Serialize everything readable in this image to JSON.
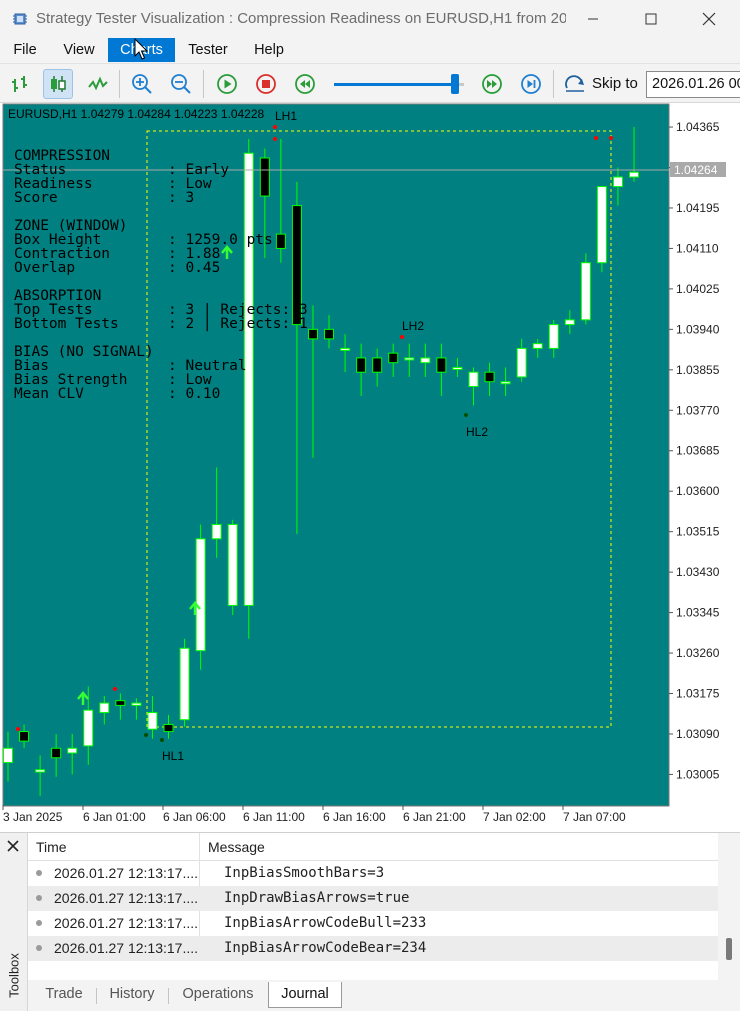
{
  "window": {
    "title": "Strategy Tester Visualization : Compression Readiness on EURUSD,H1 from 20...",
    "minimize_icon": "minimize-icon",
    "maximize_icon": "maximize-icon",
    "close_icon": "close-icon"
  },
  "menu": {
    "items": [
      "File",
      "View",
      "Charts",
      "Tester",
      "Help"
    ],
    "active": "Charts"
  },
  "toolbar": {
    "skip_label": "Skip to",
    "skip_value": "2026.01.26 00",
    "speed_fraction": 0.93,
    "icons": [
      "bar-chart-icon",
      "candlestick-icon",
      "line-chart-icon",
      "zoom-in-icon",
      "zoom-out-icon",
      "play-icon",
      "stop-icon",
      "rewind-icon",
      "fast-forward-icon",
      "step-end-icon",
      "skip-to-icon"
    ]
  },
  "chart": {
    "symbol_line": "EURUSD,H1  1.04279 1.04284 1.04223 1.04228",
    "current_price": "1.04264",
    "background": "#008080",
    "bull_color": "#ffffff",
    "bear_color": "#000000",
    "wick_color": "#00ff00",
    "box_color": "#ffff00",
    "info_panel": {
      "compression_header": "COMPRESSION",
      "status_label": "Status",
      "status_value": ": Early",
      "readiness_label": "Readiness",
      "readiness_value": ": Low",
      "score_label": "Score",
      "score_value": ": 3",
      "zone_header": "ZONE (WINDOW)",
      "box_height_label": "Box Height",
      "box_height_value": ": 1259.0 pts",
      "contraction_label": "Contraction",
      "contraction_value": ": 1.88",
      "overlap_label": "Overlap",
      "overlap_value": ": 0.45",
      "absorption_header": "ABSORPTION",
      "top_tests_label": "Top Tests",
      "top_tests_value": ": 3 | Rejects: 3",
      "bottom_tests_label": "Bottom Tests",
      "bottom_tests_value": ": 2 | Rejects: 1",
      "bias_header": "BIAS (NO SIGNAL)",
      "bias_label": "Bias",
      "bias_value": ": Neutral",
      "bias_strength_label": "Bias Strength",
      "bias_strength_value": ": Low",
      "mean_clv_label": "Mean CLV",
      "mean_clv_value": ": 0.10"
    },
    "swing_labels": [
      "LH1",
      "LH2",
      "HL1",
      "HL2"
    ]
  },
  "chart_data": {
    "type": "candlestick",
    "title": "EURUSD,H1",
    "price_axis_ticks": [
      "1.04365",
      "1.04280",
      "1.04195",
      "1.04110",
      "1.04025",
      "1.03940",
      "1.03855",
      "1.03770",
      "1.03685",
      "1.03600",
      "1.03515",
      "1.03430",
      "1.03345",
      "1.03260",
      "1.03175",
      "1.03090",
      "1.03005"
    ],
    "time_axis_ticks": [
      "3 Jan 2025",
      "6 Jan 01:00",
      "6 Jan 06:00",
      "6 Jan 11:00",
      "6 Jan 16:00",
      "6 Jan 21:00",
      "7 Jan 02:00",
      "7 Jan 07:00"
    ],
    "ylim": [
      1.02945,
      1.04405
    ],
    "candles": [
      {
        "o": 1.0303,
        "h": 1.03095,
        "l": 1.0299,
        "c": 1.0306
      },
      {
        "o": 1.03095,
        "h": 1.0311,
        "l": 1.0306,
        "c": 1.03075
      },
      {
        "o": 1.0301,
        "h": 1.03045,
        "l": 1.0296,
        "c": 1.03015
      },
      {
        "o": 1.0306,
        "h": 1.0309,
        "l": 1.03,
        "c": 1.0304
      },
      {
        "o": 1.0305,
        "h": 1.0309,
        "l": 1.03005,
        "c": 1.0306
      },
      {
        "o": 1.03065,
        "h": 1.0319,
        "l": 1.03025,
        "c": 1.0314
      },
      {
        "o": 1.03135,
        "h": 1.0317,
        "l": 1.0311,
        "c": 1.03155
      },
      {
        "o": 1.0316,
        "h": 1.03175,
        "l": 1.0312,
        "c": 1.0315
      },
      {
        "o": 1.0315,
        "h": 1.03165,
        "l": 1.0312,
        "c": 1.03155
      },
      {
        "o": 1.031,
        "h": 1.0317,
        "l": 1.0308,
        "c": 1.03135
      },
      {
        "o": 1.0311,
        "h": 1.0313,
        "l": 1.0308,
        "c": 1.03095
      },
      {
        "o": 1.0312,
        "h": 1.0329,
        "l": 1.03105,
        "c": 1.0327
      },
      {
        "o": 1.03265,
        "h": 1.0353,
        "l": 1.03225,
        "c": 1.035
      },
      {
        "o": 1.035,
        "h": 1.0365,
        "l": 1.0346,
        "c": 1.0353
      },
      {
        "o": 1.0336,
        "h": 1.0354,
        "l": 1.0334,
        "c": 1.0353
      },
      {
        "o": 1.0336,
        "h": 1.0434,
        "l": 1.0329,
        "c": 1.0431
      },
      {
        "o": 1.043,
        "h": 1.0432,
        "l": 1.0409,
        "c": 1.0422
      },
      {
        "o": 1.0414,
        "h": 1.0434,
        "l": 1.0408,
        "c": 1.0411
      },
      {
        "o": 1.042,
        "h": 1.0425,
        "l": 1.0351,
        "c": 1.0395
      },
      {
        "o": 1.0394,
        "h": 1.0399,
        "l": 1.0367,
        "c": 1.0392
      },
      {
        "o": 1.0394,
        "h": 1.0397,
        "l": 1.039,
        "c": 1.0392
      },
      {
        "o": 1.039,
        "h": 1.0393,
        "l": 1.0385,
        "c": 1.039
      },
      {
        "o": 1.0388,
        "h": 1.0391,
        "l": 1.038,
        "c": 1.0385
      },
      {
        "o": 1.0388,
        "h": 1.039,
        "l": 1.0382,
        "c": 1.0385
      },
      {
        "o": 1.0389,
        "h": 1.0391,
        "l": 1.0384,
        "c": 1.0387
      },
      {
        "o": 1.0388,
        "h": 1.0391,
        "l": 1.0384,
        "c": 1.0388
      },
      {
        "o": 1.0387,
        "h": 1.0391,
        "l": 1.0384,
        "c": 1.0388
      },
      {
        "o": 1.0388,
        "h": 1.0391,
        "l": 1.038,
        "c": 1.0385
      },
      {
        "o": 1.0386,
        "h": 1.0388,
        "l": 1.0384,
        "c": 1.0386
      },
      {
        "o": 1.0382,
        "h": 1.0386,
        "l": 1.0378,
        "c": 1.0385
      },
      {
        "o": 1.0385,
        "h": 1.0387,
        "l": 1.038,
        "c": 1.0383
      },
      {
        "o": 1.0383,
        "h": 1.0386,
        "l": 1.038,
        "c": 1.0383
      },
      {
        "o": 1.0384,
        "h": 1.0392,
        "l": 1.0383,
        "c": 1.039
      },
      {
        "o": 1.039,
        "h": 1.0392,
        "l": 1.0388,
        "c": 1.0391
      },
      {
        "o": 1.039,
        "h": 1.0396,
        "l": 1.0388,
        "c": 1.0395
      },
      {
        "o": 1.0395,
        "h": 1.0398,
        "l": 1.0393,
        "c": 1.0396
      },
      {
        "o": 1.0396,
        "h": 1.041,
        "l": 1.0395,
        "c": 1.0408
      },
      {
        "o": 1.0408,
        "h": 1.0424,
        "l": 1.0406,
        "c": 1.0424
      },
      {
        "o": 1.0424,
        "h": 1.0428,
        "l": 1.042,
        "c": 1.0426
      },
      {
        "o": 1.0426,
        "h": 1.04365,
        "l": 1.0425,
        "c": 1.0427
      }
    ]
  },
  "toolbox": {
    "label": "Toolbox",
    "close_icon": "close-icon",
    "columns": [
      "Time",
      "Message"
    ],
    "rows": [
      {
        "time": "2026.01.27 12:13:17....",
        "message": "InpBiasSmoothBars=3"
      },
      {
        "time": "2026.01.27 12:13:17....",
        "message": "InpDrawBiasArrows=true"
      },
      {
        "time": "2026.01.27 12:13:17....",
        "message": "InpBiasArrowCodeBull=233"
      },
      {
        "time": "2026.01.27 12:13:17....",
        "message": "InpBiasArrowCodeBear=234"
      }
    ],
    "tabs": [
      "Trade",
      "History",
      "Operations",
      "Journal"
    ],
    "active_tab": "Journal"
  }
}
